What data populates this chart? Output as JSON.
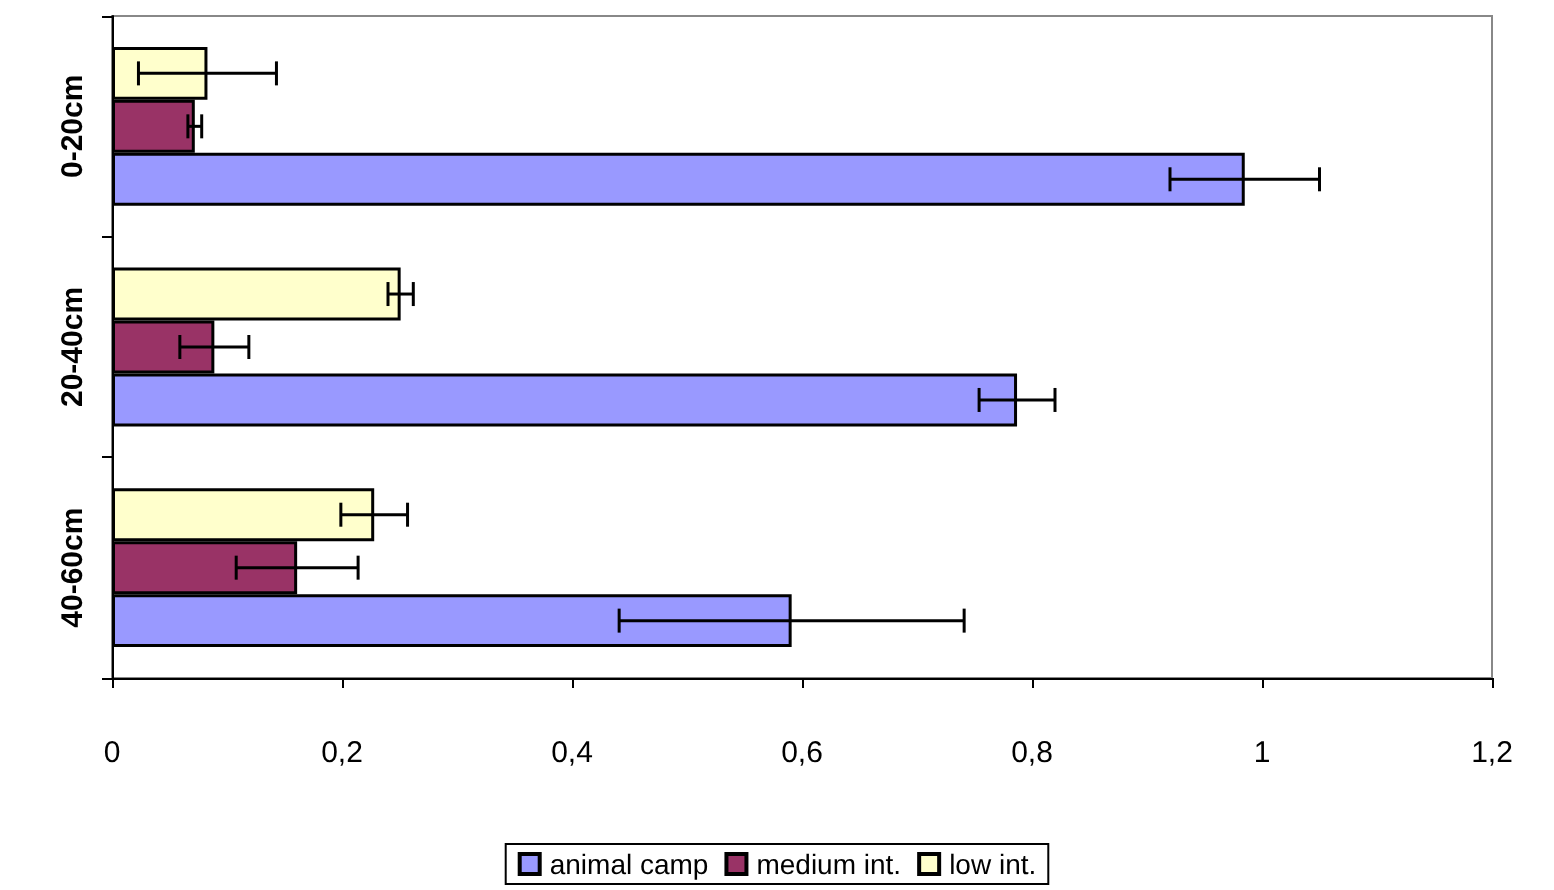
{
  "chart_data": {
    "type": "bar",
    "orientation": "horizontal",
    "categories": [
      "0-20cm",
      "20-40cm",
      "40-60cm"
    ],
    "series": [
      {
        "name": "animal camp",
        "color": "#9999ff",
        "values": [
          0.985,
          0.787,
          0.591
        ],
        "errors": [
          0.065,
          0.033,
          0.15
        ]
      },
      {
        "name": "medium int.",
        "color": "#993366",
        "values": [
          0.072,
          0.089,
          0.161
        ],
        "errors": [
          0.006,
          0.03,
          0.053
        ]
      },
      {
        "name": "low int.",
        "color": "#ffffcc",
        "values": [
          0.083,
          0.251,
          0.228
        ],
        "errors": [
          0.06,
          0.011,
          0.029
        ]
      }
    ],
    "xlim": [
      0,
      1.2
    ],
    "xticks": [
      {
        "value": 0,
        "label": "0"
      },
      {
        "value": 0.2,
        "label": "0,2"
      },
      {
        "value": 0.4,
        "label": "0,4"
      },
      {
        "value": 0.6,
        "label": "0,6"
      },
      {
        "value": 0.8,
        "label": "0,8"
      },
      {
        "value": 1,
        "label": "1"
      },
      {
        "value": 1.2,
        "label": "1,2"
      }
    ],
    "grid": false,
    "legend": "bottom"
  }
}
